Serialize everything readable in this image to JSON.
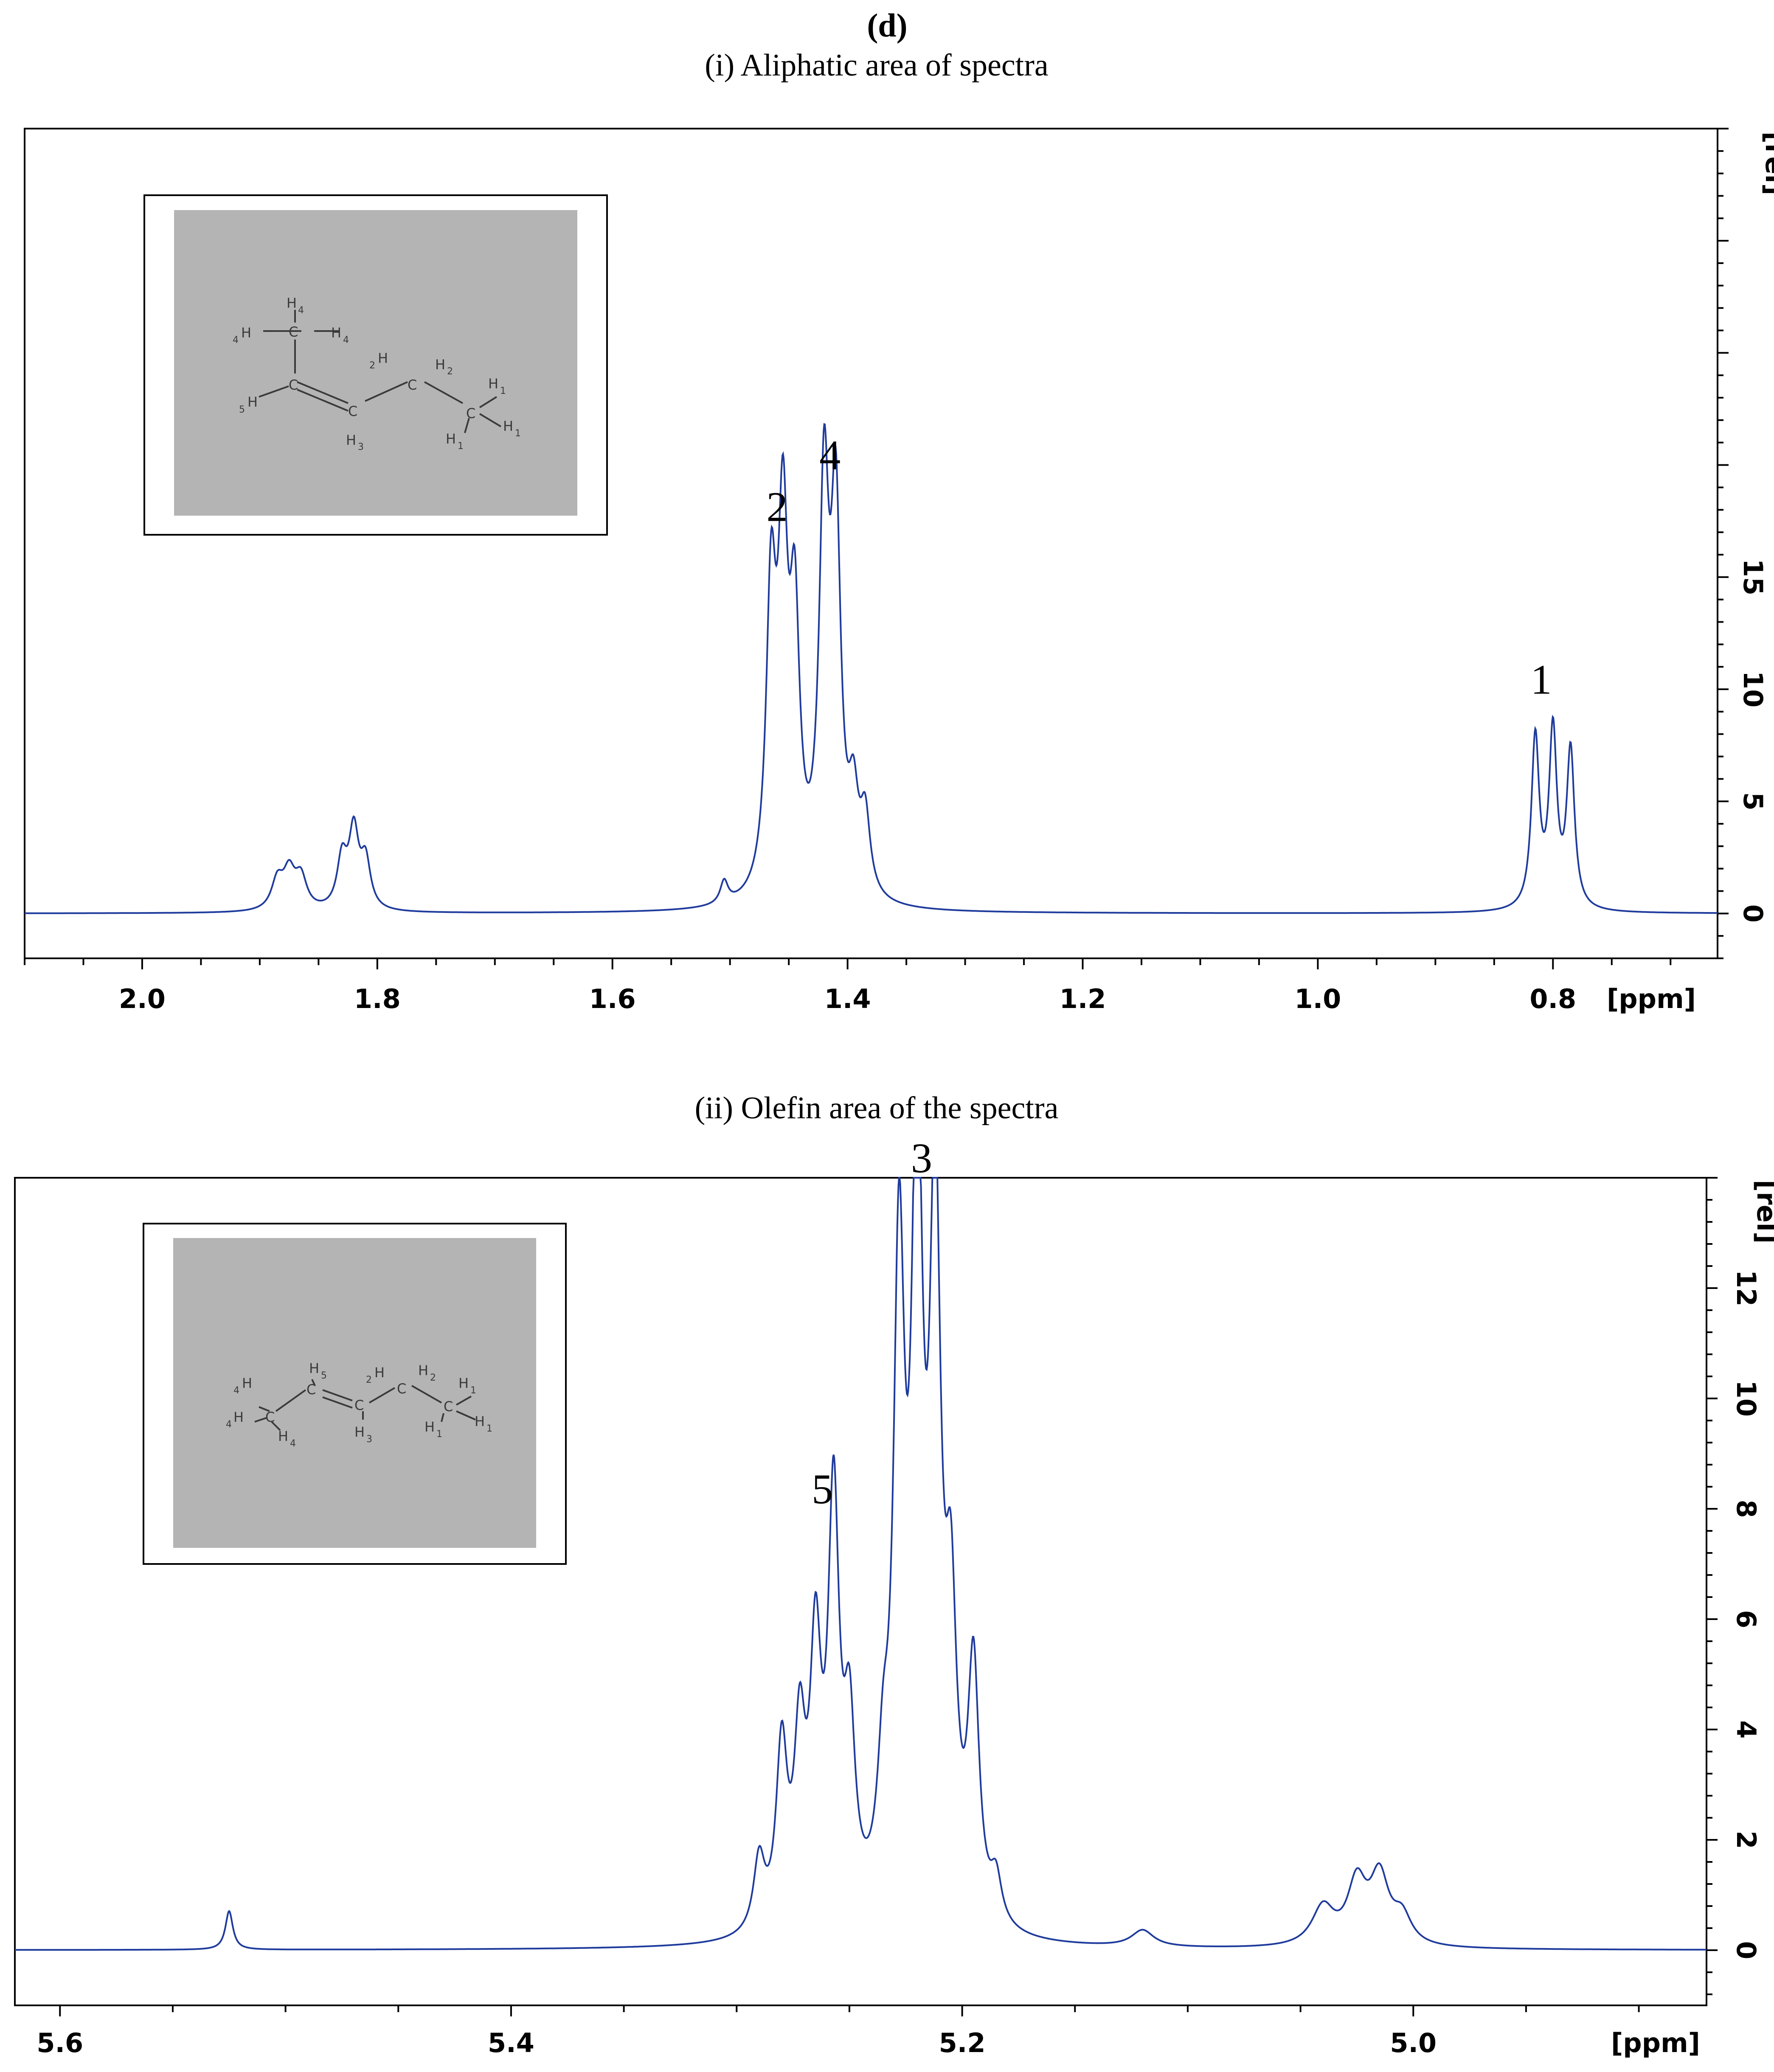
{
  "panel_letter": "(d)",
  "chart_data": [
    {
      "type": "line",
      "title": "(i) Aliphatic area of spectra",
      "xlabel": "[ppm]",
      "ylabel": "[rel]",
      "x_axis_reversed": true,
      "xlim": [
        2.1,
        0.66
      ],
      "ylim": [
        -2,
        35
      ],
      "xticks": [
        "2.0",
        "1.8",
        "1.6",
        "1.4",
        "1.2",
        "1.0",
        "0.8"
      ],
      "yticks": [
        "0",
        "5",
        "10",
        "15"
      ],
      "grid": false,
      "line_color": "#1f3b9c",
      "peaks": [
        {
          "center": 1.885,
          "height": 1.3,
          "width": 0.006
        },
        {
          "center": 1.875,
          "height": 1.6,
          "width": 0.006
        },
        {
          "center": 1.865,
          "height": 1.4,
          "width": 0.006
        },
        {
          "center": 1.83,
          "height": 2.2,
          "width": 0.005
        },
        {
          "center": 1.82,
          "height": 3.4,
          "width": 0.005
        },
        {
          "center": 1.81,
          "height": 2.1,
          "width": 0.005
        },
        {
          "center": 1.505,
          "height": 1.0,
          "width": 0.004
        },
        {
          "center": 1.465,
          "height": 13.0,
          "width": 0.005
        },
        {
          "center": 1.455,
          "height": 15.0,
          "width": 0.005
        },
        {
          "center": 1.445,
          "height": 11.5,
          "width": 0.005
        },
        {
          "center": 1.42,
          "height": 17.4,
          "width": 0.005
        },
        {
          "center": 1.41,
          "height": 16.2,
          "width": 0.005
        },
        {
          "center": 1.395,
          "height": 3.8,
          "width": 0.005
        },
        {
          "center": 1.385,
          "height": 3.4,
          "width": 0.005
        },
        {
          "center": 0.815,
          "height": 7.6,
          "width": 0.004
        },
        {
          "center": 0.8,
          "height": 7.8,
          "width": 0.004
        },
        {
          "center": 0.785,
          "height": 7.0,
          "width": 0.004
        }
      ],
      "annotations": [
        {
          "text": "2",
          "x": 1.46,
          "y": 17.5
        },
        {
          "text": "4",
          "x": 1.415,
          "y": 19.8
        },
        {
          "text": "1",
          "x": 0.81,
          "y": 9.8
        }
      ],
      "inset_structure": {
        "description_labels": [
          "H",
          "4",
          "C",
          "H",
          "4",
          "H",
          "4",
          "C",
          "H",
          "5",
          "C",
          "H",
          "3",
          "H",
          "2",
          "C",
          "H",
          "2",
          "C",
          "H",
          "1",
          "H",
          "1",
          "H",
          "1"
        ]
      }
    },
    {
      "type": "line",
      "title": "(ii) Olefin area of the spectra",
      "xlabel": "[ppm]",
      "ylabel": "[rel]",
      "x_axis_reversed": true,
      "xlim": [
        5.62,
        4.87
      ],
      "ylim": [
        -1,
        14
      ],
      "xticks": [
        "5.6",
        "5.4",
        "5.2",
        "5.0"
      ],
      "yticks": [
        "0",
        "2",
        "4",
        "6",
        "8",
        "10",
        "12"
      ],
      "grid": false,
      "line_color": "#1f3b9c",
      "peaks": [
        {
          "center": 5.525,
          "height": 0.7,
          "width": 0.002
        },
        {
          "center": 5.29,
          "height": 1.3,
          "width": 0.003
        },
        {
          "center": 5.28,
          "height": 3.2,
          "width": 0.003
        },
        {
          "center": 5.272,
          "height": 3.2,
          "width": 0.003
        },
        {
          "center": 5.265,
          "height": 4.6,
          "width": 0.003
        },
        {
          "center": 5.257,
          "height": 7.4,
          "width": 0.003
        },
        {
          "center": 5.25,
          "height": 3.2,
          "width": 0.003
        },
        {
          "center": 5.235,
          "height": 2.0,
          "width": 0.003
        },
        {
          "center": 5.228,
          "height": 11.3,
          "width": 0.003
        },
        {
          "center": 5.22,
          "height": 13.5,
          "width": 0.003
        },
        {
          "center": 5.212,
          "height": 12.3,
          "width": 0.003
        },
        {
          "center": 5.205,
          "height": 4.8,
          "width": 0.003
        },
        {
          "center": 5.195,
          "height": 4.5,
          "width": 0.003
        },
        {
          "center": 5.185,
          "height": 0.8,
          "width": 0.003
        },
        {
          "center": 5.12,
          "height": 0.3,
          "width": 0.006
        },
        {
          "center": 5.04,
          "height": 0.7,
          "width": 0.006
        },
        {
          "center": 5.025,
          "height": 1.1,
          "width": 0.005
        },
        {
          "center": 5.015,
          "height": 1.2,
          "width": 0.005
        },
        {
          "center": 5.005,
          "height": 0.5,
          "width": 0.005
        }
      ],
      "annotations": [
        {
          "text": "5",
          "x": 5.262,
          "y": 8.1
        },
        {
          "text": "3",
          "x": 5.218,
          "y": 14.1
        }
      ],
      "inset_structure": {
        "description_labels": [
          "H",
          "5",
          "H",
          "4",
          "C",
          "C",
          "H",
          "4",
          "H",
          "4",
          "C",
          "H",
          "3",
          "H",
          "2",
          "C",
          "H",
          "2",
          "C",
          "H",
          "1",
          "H",
          "1",
          "H",
          "1"
        ]
      }
    }
  ]
}
